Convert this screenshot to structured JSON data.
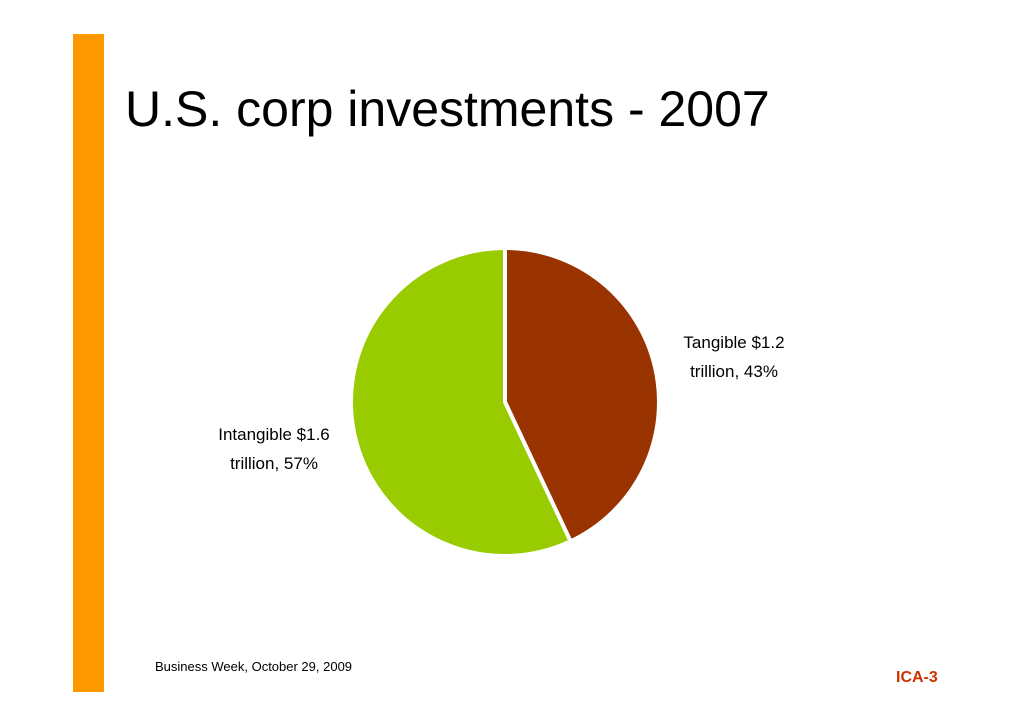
{
  "slide": {
    "title": "U.S. corp investments - 2007",
    "source": "Business Week, October 29, 2009",
    "slide_id": "ICA-3"
  },
  "colors": {
    "accent_bar": "#ff9900",
    "slide_id": "#cc3300",
    "tangible": "#993300",
    "intangible": "#99cc00"
  },
  "chart_data": {
    "type": "pie",
    "title": "",
    "slices": [
      {
        "label_line1": "Tangible $1.2",
        "label_line2": "trillion, 43%",
        "value": 1.2,
        "percent": 43,
        "color": "#993300"
      },
      {
        "label_line1": "Intangible $1.6",
        "label_line2": "trillion, 57%",
        "value": 1.6,
        "percent": 57,
        "color": "#99cc00"
      }
    ]
  }
}
